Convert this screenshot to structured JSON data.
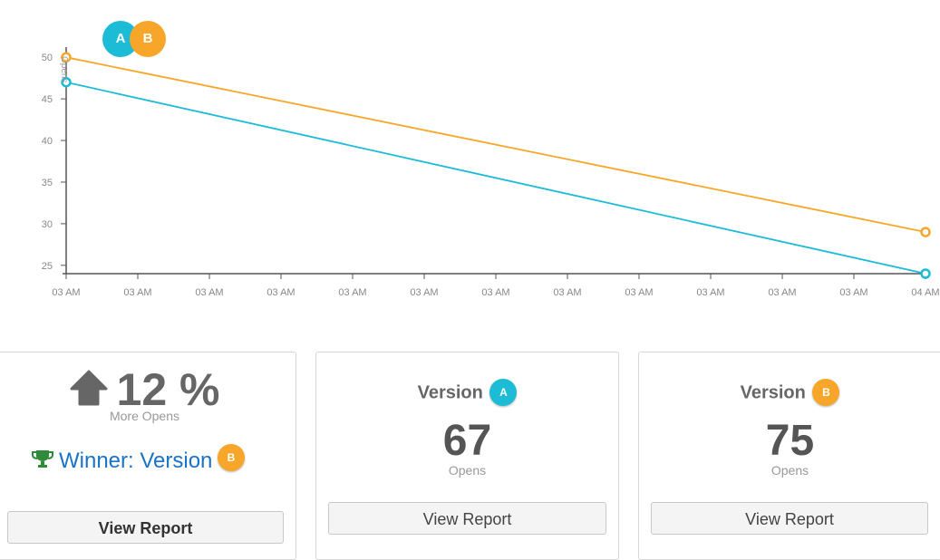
{
  "chart_data": {
    "type": "line",
    "x": [
      "03 AM",
      "03 AM",
      "03 AM",
      "03 AM",
      "03 AM",
      "03 AM",
      "03 AM",
      "03 AM",
      "03 AM",
      "03 AM",
      "03 AM",
      "03 AM",
      "04 AM"
    ],
    "series": [
      {
        "name": "A",
        "color": "#1cbcd6",
        "points": [
          [
            0,
            47
          ],
          [
            12,
            24
          ]
        ]
      },
      {
        "name": "B",
        "color": "#f8a62a",
        "points": [
          [
            0,
            50
          ],
          [
            12,
            29
          ]
        ]
      }
    ],
    "ylabel": "Opens",
    "yticks": [
      25,
      30,
      35,
      40,
      45,
      50
    ],
    "ylim": [
      24,
      51
    ],
    "grid": false
  },
  "legend": {
    "a_label": "A",
    "b_label": "B"
  },
  "summary": {
    "percent": "12 %",
    "percent_caption": "More Opens",
    "winner_text": "Winner: Version",
    "winner_badge": "B",
    "button": "View Report"
  },
  "version_a": {
    "title": "Version",
    "badge": "A",
    "count": "67",
    "caption": "Opens",
    "button": "View Report"
  },
  "version_b": {
    "title": "Version",
    "badge": "B",
    "count": "75",
    "caption": "Opens",
    "button": "View Report"
  }
}
